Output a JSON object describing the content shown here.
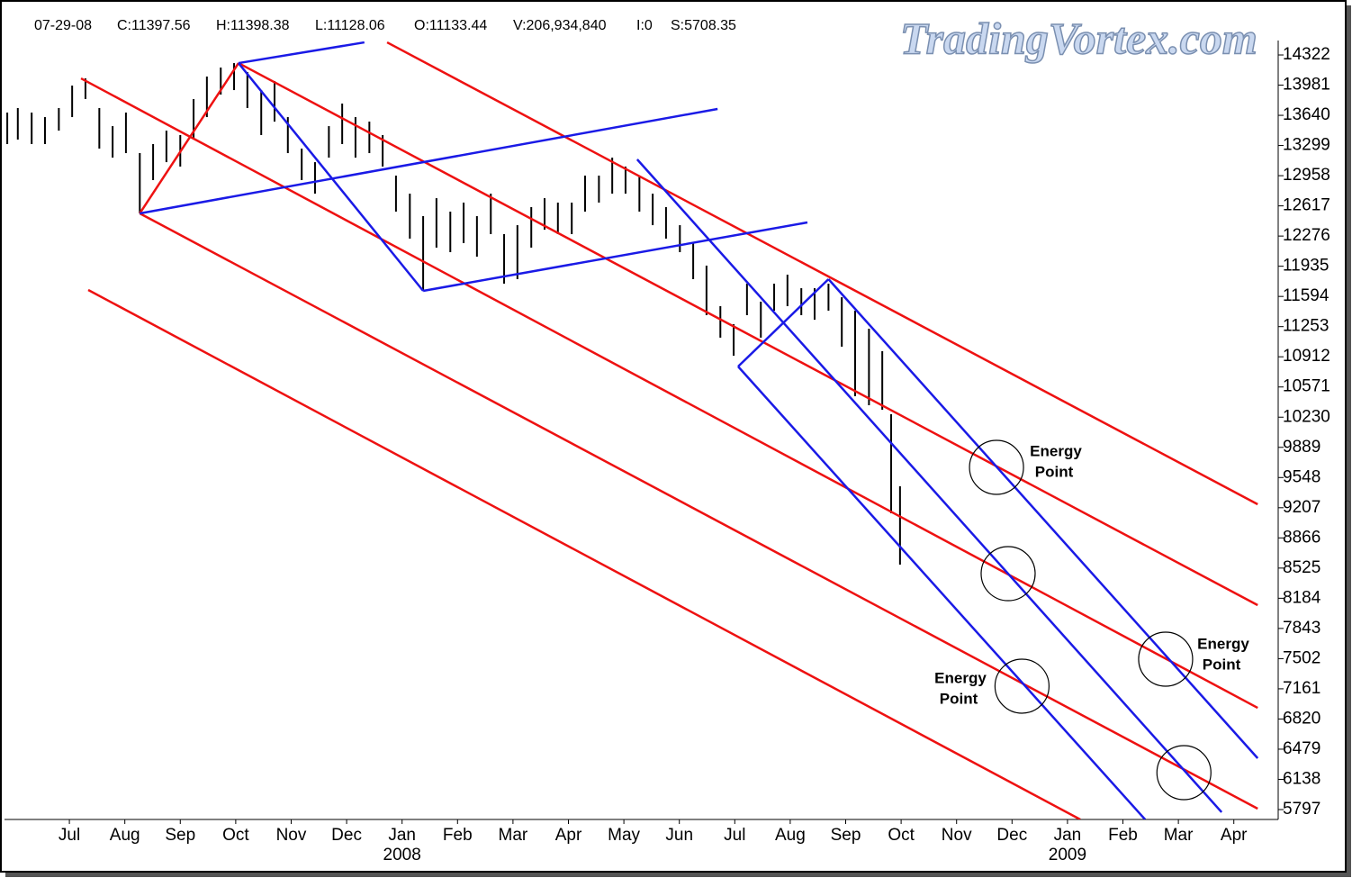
{
  "header": {
    "date": "07-29-08",
    "close": "C:11397.56",
    "high": "H:11398.38",
    "low": "L:11128.06",
    "open": "O:11133.44",
    "volume": "V:206,934,840",
    "interest": "I:0",
    "s": "S:5708.35",
    "watermark": "TradingVortex.com"
  },
  "chart_data": {
    "type": "ohlc",
    "color": "#000000",
    "x": [
      -1.12,
      -0.93,
      -0.68,
      -0.44,
      -0.19,
      0.05,
      0.29,
      0.54,
      0.78,
      1.02,
      1.27,
      1.51,
      1.75,
      2.0,
      2.24,
      2.48,
      2.73,
      2.97,
      3.21,
      3.46,
      3.7,
      3.94,
      4.19,
      4.43,
      4.68,
      4.92,
      5.16,
      5.41,
      5.65,
      5.89,
      6.14,
      6.38,
      6.62,
      6.87,
      7.11,
      7.35,
      7.6,
      7.84,
      8.08,
      8.33,
      8.57,
      8.81,
      9.06,
      9.3,
      9.55,
      9.79,
      10.03,
      10.28,
      10.52,
      10.76,
      11.01,
      11.25,
      11.49,
      11.74,
      11.98,
      12.22,
      12.47,
      12.71,
      12.95,
      13.2,
      13.44,
      13.69,
      13.93,
      14.17,
      14.42,
      14.66,
      14.82,
      14.98
    ],
    "high": [
      13671,
      13722,
      13671,
      13620,
      13722,
      13976,
      14057,
      13722,
      13518,
      13671,
      13213,
      13315,
      13467,
      13417,
      13824,
      14078,
      14180,
      14230,
      14129,
      13925,
      14027,
      13620,
      13264,
      13111,
      13518,
      13773,
      13620,
      13569,
      13417,
      12959,
      12755,
      12501,
      12704,
      12552,
      12654,
      12501,
      12755,
      12298,
      12399,
      12603,
      12704,
      12654,
      12654,
      12959,
      12959,
      13162,
      13061,
      12959,
      12755,
      12603,
      12399,
      12196,
      11942,
      11484,
      11280,
      11738,
      11535,
      11738,
      11840,
      11687,
      11687,
      11738,
      11585,
      11433,
      11229,
      10975,
      10263,
      9449
    ],
    "low": [
      13315,
      13366,
      13315,
      13315,
      13467,
      13620,
      13824,
      13264,
      13162,
      13213,
      12532,
      12908,
      13111,
      13061,
      13366,
      13620,
      13874,
      13925,
      13722,
      13417,
      13569,
      13213,
      12908,
      12755,
      13162,
      13315,
      13162,
      13213,
      13061,
      12552,
      12247,
      11657,
      12145,
      12094,
      12196,
      12043,
      12298,
      11738,
      11789,
      12145,
      12348,
      12298,
      12298,
      12552,
      12654,
      12755,
      12755,
      12552,
      12399,
      12247,
      12094,
      11789,
      11382,
      11128,
      10924,
      11382,
      11128,
      11433,
      11484,
      11382,
      11331,
      11433,
      11026,
      10466,
      10365,
      10314,
      9144,
      8564
    ],
    "xlim": [
      -1.17,
      21.8
    ],
    "xticks": [
      {
        "value": 0,
        "label": "Jul"
      },
      {
        "value": 1,
        "label": "Aug"
      },
      {
        "value": 2,
        "label": "Sep"
      },
      {
        "value": 3,
        "label": "Oct"
      },
      {
        "value": 4,
        "label": "Nov"
      },
      {
        "value": 5,
        "label": "Dec"
      },
      {
        "value": 6,
        "label": "Jan"
      },
      {
        "value": 7,
        "label": "Feb"
      },
      {
        "value": 8,
        "label": "Mar"
      },
      {
        "value": 9,
        "label": "Apr"
      },
      {
        "value": 10,
        "label": "May"
      },
      {
        "value": 11,
        "label": "Jun"
      },
      {
        "value": 12,
        "label": "Jul"
      },
      {
        "value": 13,
        "label": "Aug"
      },
      {
        "value": 14,
        "label": "Sep"
      },
      {
        "value": 15,
        "label": "Oct"
      },
      {
        "value": 16,
        "label": "Nov"
      },
      {
        "value": 17,
        "label": "Dec"
      },
      {
        "value": 18,
        "label": "Jan"
      },
      {
        "value": 19,
        "label": "Feb"
      },
      {
        "value": 20,
        "label": "Mar"
      },
      {
        "value": 21,
        "label": "Apr"
      }
    ],
    "year_labels": [
      {
        "value": 6,
        "label": "2008"
      },
      {
        "value": 18,
        "label": "2009"
      }
    ],
    "ylim": [
      5685,
      14485
    ],
    "yticks": [
      5797,
      6138,
      6479,
      6820,
      7161,
      7502,
      7843,
      8184,
      8525,
      8866,
      9207,
      9548,
      9889,
      10230,
      10571,
      10912,
      11253,
      11594,
      11935,
      12276,
      12617,
      12958,
      13299,
      13640,
      13981,
      14322
    ],
    "overlay_lines": [
      {
        "color": "#ee1111",
        "x": [
          5.73,
          21.43
        ],
        "y": [
          14464,
          9246
        ]
      },
      {
        "color": "#ee1111",
        "x": [
          3.05,
          21.43
        ],
        "y": [
          14230,
          8106
        ]
      },
      {
        "color": "#ee1111",
        "x": [
          0.21,
          21.43
        ],
        "y": [
          14057,
          6946
        ]
      },
      {
        "color": "#ee1111",
        "x": [
          1.27,
          21.43
        ],
        "y": [
          12532,
          5807
        ]
      },
      {
        "color": "#ee1111",
        "x": [
          0.34,
          18.23
        ],
        "y": [
          11667,
          5685
        ]
      },
      {
        "color": "#ee1111",
        "x": [
          1.27,
          3.05
        ],
        "y": [
          12532,
          14230
        ]
      },
      {
        "color": "#1a1ae6",
        "x": [
          3.05,
          5.32
        ],
        "y": [
          14230,
          14464
        ]
      },
      {
        "color": "#1a1ae6",
        "x": [
          1.27,
          11.69
        ],
        "y": [
          12532,
          13712
        ]
      },
      {
        "color": "#1a1ae6",
        "x": [
          6.38,
          13.31
        ],
        "y": [
          11657,
          12430
        ]
      },
      {
        "color": "#1a1ae6",
        "x": [
          3.05,
          6.38
        ],
        "y": [
          14230,
          11657
        ]
      },
      {
        "color": "#1a1ae6",
        "x": [
          10.24,
          20.78
        ],
        "y": [
          13142,
          5767
        ]
      },
      {
        "color": "#1a1ae6",
        "x": [
          13.69,
          21.43
        ],
        "y": [
          11789,
          6377
        ]
      },
      {
        "color": "#1a1ae6",
        "x": [
          12.06,
          13.69
        ],
        "y": [
          10802,
          11789
        ]
      },
      {
        "color": "#1a1ae6",
        "x": [
          12.06,
          19.4
        ],
        "y": [
          10802,
          5685
        ]
      }
    ],
    "circles": [
      {
        "x": 16.72,
        "y": 9663
      },
      {
        "x": 16.93,
        "y": 8462
      },
      {
        "x": 17.18,
        "y": 7191
      },
      {
        "x": 19.77,
        "y": 7496
      },
      {
        "x": 20.1,
        "y": 6214
      }
    ],
    "annotations": [
      {
        "lines": [
          "Energy",
          "Point"
        ]
      },
      {
        "lines": [
          "Energy",
          "Point"
        ]
      },
      {
        "lines": [
          "Energy",
          "Point"
        ]
      }
    ]
  }
}
